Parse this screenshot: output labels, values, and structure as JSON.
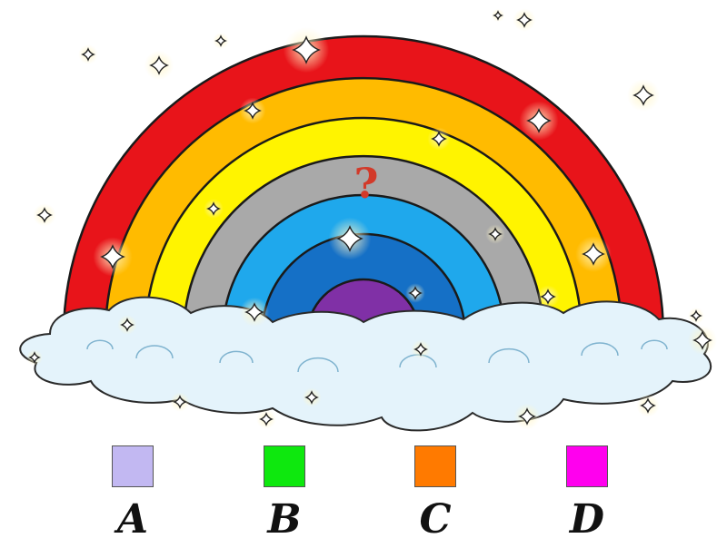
{
  "puzzle": {
    "question_mark": "?",
    "rainbow_bands": [
      "#e8141a",
      "#ffbb00",
      "#fff400",
      "#a9a9a9",
      "#1fa8ec",
      "#1570c6",
      "#8030a6"
    ],
    "missing_band_color": "#a9a9a9",
    "cloud_color": "#e4f3fb"
  },
  "options": [
    {
      "letter": "A",
      "color": "#c2b8f2"
    },
    {
      "letter": "B",
      "color": "#0ee80e"
    },
    {
      "letter": "C",
      "color": "#ff7a00"
    },
    {
      "letter": "D",
      "color": "#ff00ee"
    }
  ]
}
